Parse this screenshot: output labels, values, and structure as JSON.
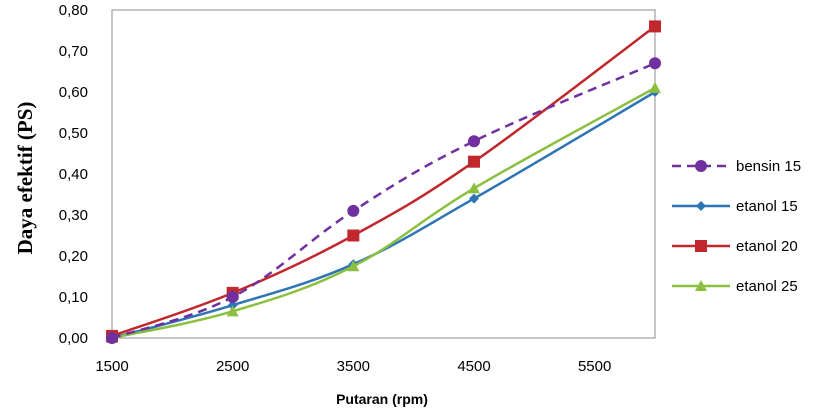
{
  "chart_data": {
    "type": "line",
    "title": "",
    "xlabel": "Putaran (rpm)",
    "ylabel": "Daya efektif (PS)",
    "xlim": [
      1500,
      6000
    ],
    "ylim": [
      0,
      0.8
    ],
    "xticks": [
      "1500",
      "2500",
      "3500",
      "4500",
      "5500"
    ],
    "yticks": [
      "0,00",
      "0,10",
      "0,20",
      "0,30",
      "0,40",
      "0,50",
      "0,60",
      "0,70",
      "0,80"
    ],
    "grid": false,
    "legend_position": "right",
    "series": [
      {
        "name": "bensin 15",
        "color": "#7030a0",
        "marker": "circle",
        "dashed": true,
        "x": [
          1500,
          2500,
          3500,
          4500,
          6000
        ],
        "y": [
          0.0,
          0.1,
          0.31,
          0.48,
          0.67
        ]
      },
      {
        "name": "etanol 15",
        "color": "#2e75b6",
        "marker": "diamond",
        "dashed": false,
        "x": [
          1500,
          2500,
          3500,
          4500,
          6000
        ],
        "y": [
          0.0,
          0.08,
          0.18,
          0.34,
          0.6
        ]
      },
      {
        "name": "etanol 20",
        "color": "#c0282d",
        "marker": "square",
        "dashed": false,
        "x": [
          1500,
          2500,
          3500,
          4500,
          6000
        ],
        "y": [
          0.005,
          0.11,
          0.25,
          0.43,
          0.76
        ]
      },
      {
        "name": "etanol 25",
        "color": "#8cbf3f",
        "marker": "triangle",
        "dashed": false,
        "x": [
          1500,
          2500,
          3500,
          4500,
          6000
        ],
        "y": [
          0.0,
          0.065,
          0.175,
          0.365,
          0.61
        ]
      }
    ]
  }
}
